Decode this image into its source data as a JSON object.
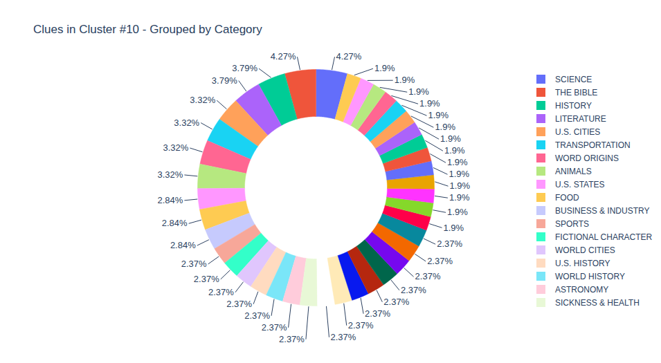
{
  "chart_data": {
    "type": "donut",
    "title": "Clues in Cluster #10 - Grouped by Category",
    "categories": [
      "SCIENCE",
      "THE BIBLE",
      "HISTORY",
      "LITERATURE",
      "U.S. CITIES",
      "TRANSPORTATION",
      "WORD ORIGINS",
      "ANIMALS",
      "U.S. STATES",
      "FOOD",
      "BUSINESS & INDUSTRY",
      "SPORTS",
      "FICTIONAL CHARACTER",
      "WORLD CITIES",
      "U.S. HISTORY",
      "WORLD HISTORY",
      "ASTRONOMY",
      "SICKNESS & HEALTH",
      null,
      null,
      null,
      null,
      null,
      null,
      null,
      null,
      null,
      null,
      null,
      null,
      null,
      null,
      null,
      null,
      null,
      null,
      null,
      null,
      null,
      null
    ],
    "values": [
      4.27,
      4.27,
      3.79,
      3.79,
      3.32,
      3.32,
      3.32,
      3.32,
      2.84,
      2.84,
      2.84,
      2.37,
      2.37,
      2.37,
      2.37,
      2.37,
      2.37,
      2.37,
      2.37,
      2.37,
      2.37,
      2.37,
      2.37,
      2.37,
      2.37,
      2.37,
      1.9,
      1.9,
      1.9,
      1.9,
      1.9,
      1.9,
      1.9,
      1.9,
      1.9,
      1.9,
      1.9,
      1.9,
      1.9,
      1.9
    ],
    "value_labels": [
      "4.27%",
      "4.27%",
      "3.79%",
      "3.79%",
      "3.32%",
      "3.32%",
      "3.32%",
      "3.32%",
      "2.84%",
      "2.84%",
      "2.84%",
      "2.37%",
      "2.37%",
      "2.37%",
      "2.37%",
      "2.37%",
      "2.37%",
      "2.37%",
      "2.37%",
      "2.37%",
      "2.37%",
      "2.37%",
      "2.37%",
      "2.37%",
      "2.37%",
      "2.37%",
      "1.9%",
      "1.9%",
      "1.9%",
      "1.9%",
      "1.9%",
      "1.9%",
      "1.9%",
      "1.9%",
      "1.9%",
      "1.9%",
      "1.9%",
      "1.9%",
      "1.9%",
      "1.9%"
    ],
    "colors": [
      "#636efa",
      "#ef553b",
      "#00cc96",
      "#ab63fa",
      "#ffa15a",
      "#19d3f3",
      "#ff6692",
      "#b6e880",
      "#ff97ff",
      "#fecb52",
      "#c6cafd",
      "#f7a799",
      "#33ffc9",
      "#e0c6fd",
      "#ffdbc0",
      "#7ae6f8",
      "#ffccdb",
      "#e8f8d6",
      "#ffffff",
      "#ffeab7",
      "#0819ef",
      "#b5270f",
      "#00664b",
      "#7608ef",
      "#f36800",
      "#08889d",
      "#ff0049",
      "#85d82a",
      "#ff33ff",
      "#e9a401",
      "#636efa",
      "#ef553b",
      "#00cc96",
      "#ab63fa",
      "#ffa15a",
      "#19d3f3",
      "#ff6692",
      "#b6e880",
      "#ff97ff",
      "#fecb52"
    ],
    "data_labels": true,
    "legend": "right"
  }
}
